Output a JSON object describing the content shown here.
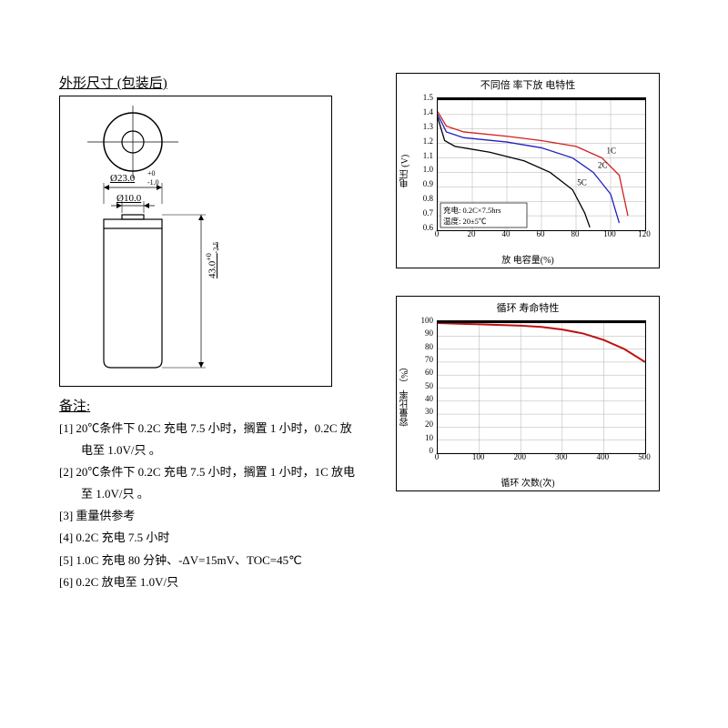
{
  "left": {
    "section_title": "外形尺寸  (包装后)",
    "dim_diameter": "Ø23.0",
    "dim_diameter_tol_top": "+0",
    "dim_diameter_tol_bot": "-1.0",
    "dim_top_diameter": "Ø10.0",
    "dim_height": "43.0",
    "dim_height_tol_top": "+0",
    "dim_height_tol_bot": "-2.5",
    "notes_title": "备注:",
    "notes": [
      {
        "prefix": "[1]",
        "line1": "20℃条件下 0.2C 充电 7.5 小时，搁置 1 小时，0.2C 放",
        "line2": "电至 1.0V/只 。"
      },
      {
        "prefix": "[2]",
        "line1": "20℃条件下 0.2C 充电 7.5 小时，搁置 1 小时，1C 放电",
        "line2": "至 1.0V/只 。"
      },
      {
        "prefix": "[3]",
        "line1": "重量供参考",
        "line2": ""
      },
      {
        "prefix": "[4]",
        "line1": "0.2C 充电 7.5 小时",
        "line2": ""
      },
      {
        "prefix": "[5]",
        "line1": "1.0C 充电 80 分钟、-ΔV=15mV、TOC=45℃",
        "line2": ""
      },
      {
        "prefix": "[6]",
        "line1": "0.2C 放电至 1.0V/只",
        "line2": ""
      }
    ]
  },
  "chart1": {
    "title": "不同倍 率下放 电特性",
    "ylabel": "电压 (V)",
    "xlabel": "放 电容量(%)",
    "yticks": [
      "1.5",
      "1.4",
      "1.3",
      "1.2",
      "1.1",
      "1.0",
      "0.9",
      "0.8",
      "0.7",
      "0.6"
    ],
    "xticks": [
      "0",
      "20",
      "40",
      "60",
      "80",
      "100",
      "120"
    ],
    "grid_color": "#b0b0b0",
    "note_line1": "充电: 0.2C×7.5hrs",
    "note_line2": "温度: 20±5℃",
    "series": [
      {
        "label": "1C",
        "color": "#d02020",
        "points": [
          [
            0,
            1.42
          ],
          [
            5,
            1.32
          ],
          [
            15,
            1.28
          ],
          [
            40,
            1.25
          ],
          [
            60,
            1.22
          ],
          [
            80,
            1.18
          ],
          [
            95,
            1.1
          ],
          [
            105,
            0.98
          ],
          [
            110,
            0.7
          ]
        ]
      },
      {
        "label": "2C",
        "color": "#2020c0",
        "points": [
          [
            0,
            1.4
          ],
          [
            5,
            1.28
          ],
          [
            15,
            1.24
          ],
          [
            40,
            1.21
          ],
          [
            60,
            1.17
          ],
          [
            78,
            1.1
          ],
          [
            90,
            1.0
          ],
          [
            100,
            0.85
          ],
          [
            105,
            0.65
          ]
        ]
      },
      {
        "label": "5C",
        "color": "#000000",
        "points": [
          [
            0,
            1.38
          ],
          [
            4,
            1.22
          ],
          [
            10,
            1.18
          ],
          [
            30,
            1.14
          ],
          [
            50,
            1.08
          ],
          [
            65,
            1.0
          ],
          [
            78,
            0.88
          ],
          [
            85,
            0.72
          ],
          [
            88,
            0.62
          ]
        ]
      }
    ],
    "xlim": [
      0,
      120
    ],
    "ylim": [
      0.6,
      1.5
    ]
  },
  "chart2": {
    "title": "循环 寿命特性",
    "ylabel": "容量比率 （%）",
    "xlabel": "循环 次数(次)",
    "yticks": [
      "100",
      "90",
      "80",
      "70",
      "60",
      "50",
      "40",
      "30",
      "20",
      "10",
      "0"
    ],
    "xticks": [
      "0",
      "100",
      "200",
      "300",
      "400",
      "500"
    ],
    "grid_color": "#b0b0b0",
    "line_color": "#c01010",
    "points": [
      [
        0,
        100
      ],
      [
        50,
        99.5
      ],
      [
        100,
        99
      ],
      [
        150,
        98.5
      ],
      [
        200,
        98
      ],
      [
        250,
        97
      ],
      [
        300,
        95
      ],
      [
        350,
        92
      ],
      [
        400,
        87
      ],
      [
        450,
        80
      ],
      [
        500,
        70
      ]
    ],
    "xlim": [
      0,
      500
    ],
    "ylim": [
      0,
      100
    ]
  }
}
